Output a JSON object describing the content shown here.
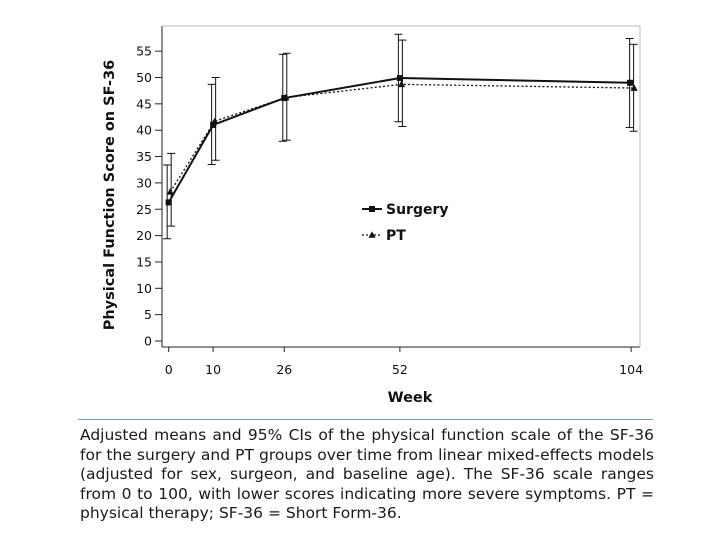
{
  "chart_data": {
    "type": "line",
    "title": "",
    "xlabel": "Week",
    "ylabel": "Physical Function Score on SF-36",
    "x": [
      0,
      10,
      26,
      52,
      104
    ],
    "x_ticks": [
      "0",
      "10",
      "26",
      "52",
      "104"
    ],
    "ylim": [
      0,
      58
    ],
    "y_ticks": [
      0,
      5,
      10,
      15,
      20,
      25,
      30,
      35,
      40,
      45,
      50,
      55
    ],
    "grid": false,
    "legend_position": "center",
    "series": [
      {
        "name": "Surgery",
        "line_style": "solid",
        "marker": "square",
        "color": "#111111",
        "values": [
          26.3,
          41.0,
          46.1,
          49.9,
          49.0
        ],
        "ci_low": [
          19.4,
          33.5,
          37.9,
          41.6,
          40.5
        ],
        "ci_high": [
          33.4,
          48.7,
          54.4,
          58.2,
          57.4
        ]
      },
      {
        "name": "PT",
        "line_style": "dotted",
        "marker": "triangle",
        "color": "#111111",
        "values": [
          28.3,
          41.7,
          46.2,
          48.7,
          48.0
        ],
        "ci_low": [
          21.8,
          34.3,
          38.1,
          40.7,
          39.8
        ],
        "ci_high": [
          35.6,
          50.0,
          54.6,
          57.1,
          56.3
        ]
      }
    ]
  },
  "caption": "Adjusted means and 95% CIs of the physical function scale of the SF-36 for the surgery and PT groups over time from linear mixed-effects models (adjusted for sex, surgeon, and baseline age). The SF-36 scale ranges from 0 to 100, with lower scores indicating more severe symptoms. PT = physical therapy; SF-36 = Short Form-36."
}
